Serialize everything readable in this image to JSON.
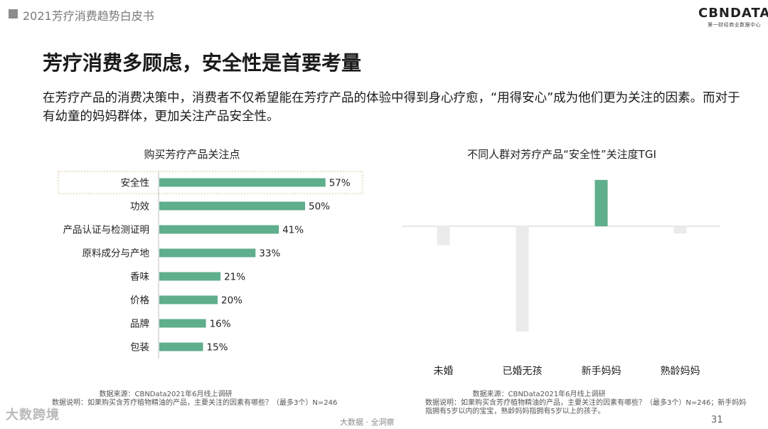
{
  "header": {
    "title": "2021芳疗消费趋势白皮书"
  },
  "logo": {
    "main": "CBNDATA",
    "sub": "第一财经商业数据中心"
  },
  "page_title": "芳疗消费多顾虑，安全性是首要考量",
  "intro": "在芳疗产品的消费决策中，消费者不仅希望能在芳疗产品的体验中得到身心疗愈，“用得安心”成为他们更为关注的因素。而对于有幼童的妈妈群体，更加关注产品安全性。",
  "colors": {
    "accent": "#5fae8c",
    "neutral": "#ebebeb",
    "highlight_border": "#d8c79a"
  },
  "chart_data": [
    {
      "type": "bar",
      "orientation": "horizontal",
      "title": "购买芳疗产品关注点",
      "categories": [
        "安全性",
        "功效",
        "产品认证与检测证明",
        "原料成分与产地",
        "香味",
        "价格",
        "品牌",
        "包装"
      ],
      "values": [
        57,
        50,
        41,
        33,
        21,
        20,
        16,
        15
      ],
      "value_labels": [
        "57%",
        "50%",
        "41%",
        "33%",
        "21%",
        "20%",
        "16%",
        "15%"
      ],
      "highlighted": "安全性"
    },
    {
      "type": "bar",
      "title": "不同人群对芳疗产品“安全性”关注度TGI",
      "categories": [
        "未婚",
        "已婚无孩",
        "新手妈妈",
        "熟龄妈妈"
      ],
      "values": [
        -18,
        -100,
        44,
        -7
      ],
      "highlighted": "新手妈妈"
    }
  ],
  "notes": {
    "left_source": "数据来源：CBNData2021年6月线上调研",
    "left_desc": "数据说明：如果购买含芳疗植物精油的产品，主要关注的因素有哪些？（最多3个）N=246",
    "right_source": "数据来源：CBNData2021年6月线上调研",
    "right_desc": "数据说明：如果购买含芳疗植物精油的产品，主要关注的因素有哪些？（最多3个）N=246；新手妈妈指拥有5岁以内的宝宝，熟龄妈妈指拥有5岁以上的孩子。"
  },
  "footer": {
    "center": "大数据 · 全洞察",
    "page": "31"
  },
  "watermark": "大数跨境"
}
